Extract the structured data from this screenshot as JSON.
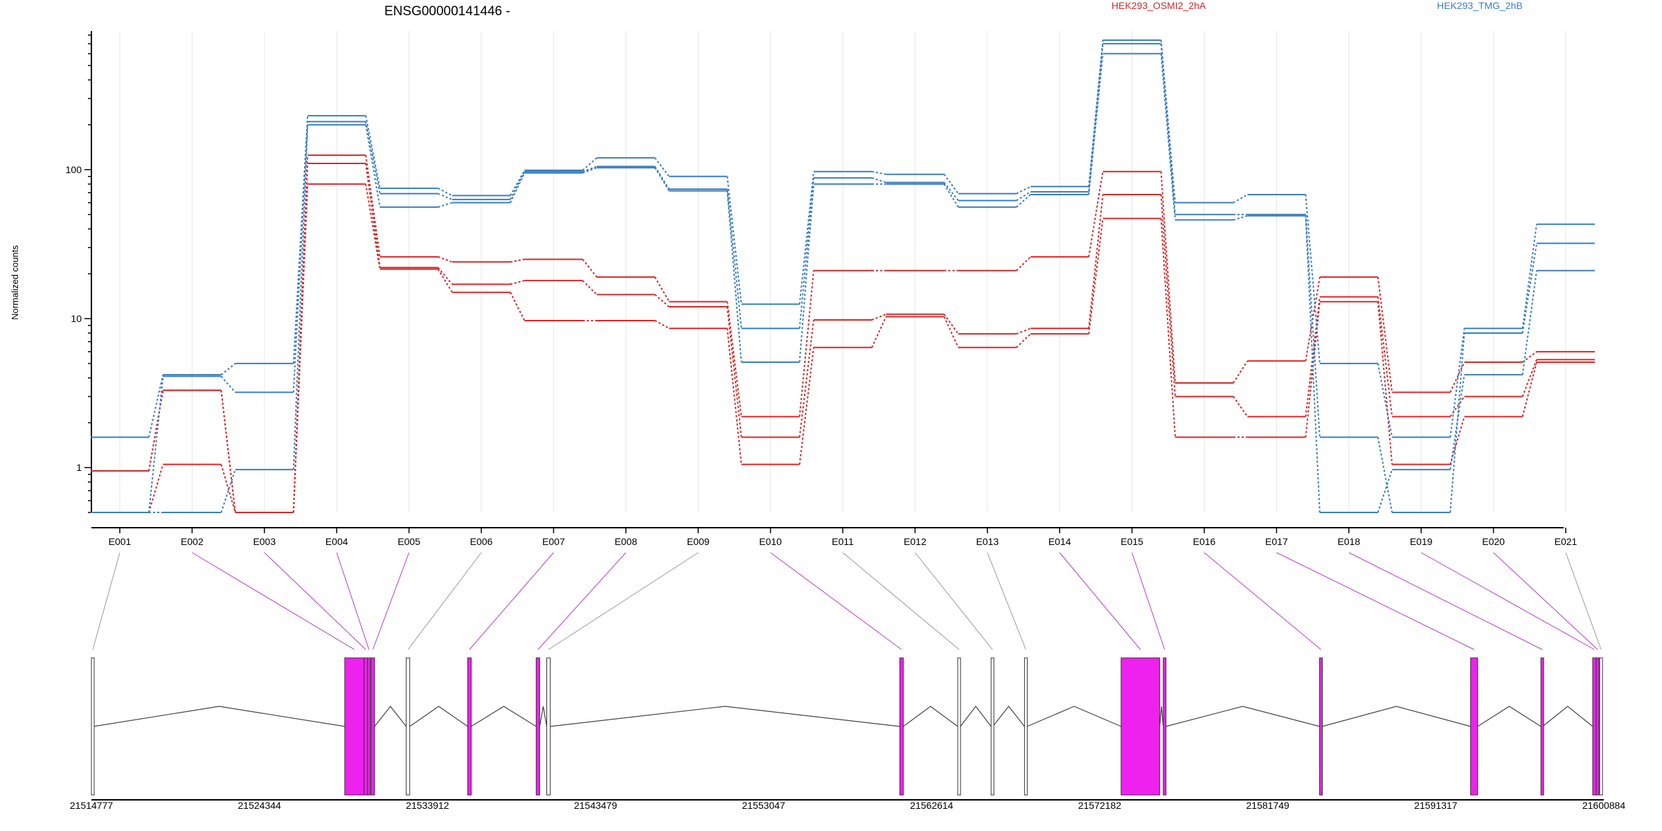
{
  "chart_data": {
    "type": "line",
    "title": "ENSG00000141446 -",
    "ylabel": "Normalized counts",
    "y_scale": "log",
    "ylim": [
      0.5,
      850
    ],
    "y_ticks": [
      1,
      10,
      100
    ],
    "y_tick_labels": [
      "1",
      "10",
      "100"
    ],
    "grid": "vertical lines at each exon",
    "legend": [
      {
        "name": "HEK293_OSMI2_2hA",
        "color": "#d62728"
      },
      {
        "name": "HEK293_TMG_2hB",
        "color": "#3a7dc4"
      }
    ],
    "categories": [
      "E001",
      "E002",
      "E003",
      "E004",
      "E005",
      "E006",
      "E007",
      "E008",
      "E009",
      "E010",
      "E011",
      "E012",
      "E013",
      "E014",
      "E015",
      "E016",
      "E017",
      "E018",
      "E019",
      "E020",
      "E021"
    ],
    "series": [
      {
        "group": "HEK293_OSMI2_2hA",
        "color": "#d62728",
        "values": [
          0.95,
          3.3,
          0.5,
          125,
          26,
          24,
          25,
          19,
          13,
          2.2,
          21,
          21,
          21,
          26,
          97,
          3.7,
          5.2,
          19,
          3.2,
          5.1,
          6.0
        ]
      },
      {
        "group": "HEK293_OSMI2_2hA",
        "color": "#d62728",
        "values": [
          0.95,
          3.3,
          0.5,
          110,
          22,
          17,
          18,
          14.5,
          12,
          1.6,
          9.8,
          10.7,
          7.9,
          8.6,
          68,
          3.0,
          2.2,
          14,
          2.2,
          3.0,
          5.3
        ]
      },
      {
        "group": "HEK293_OSMI2_2hA",
        "color": "#d62728",
        "values": [
          0.5,
          1.05,
          0.5,
          80,
          21.5,
          15,
          9.7,
          9.7,
          8.6,
          1.05,
          6.4,
          10.3,
          6.4,
          7.9,
          47,
          1.6,
          1.6,
          13,
          1.05,
          2.2,
          5.1
        ]
      },
      {
        "group": "HEK293_TMG_2hB",
        "color": "#3a7dc4",
        "values": [
          1.6,
          4.2,
          5.0,
          230,
          75,
          67,
          99,
          120,
          90,
          12.5,
          97,
          93,
          69,
          77,
          740,
          60,
          68,
          5.0,
          1.6,
          8.6,
          43
        ]
      },
      {
        "group": "HEK293_TMG_2hB",
        "color": "#3a7dc4",
        "values": [
          0.5,
          4.1,
          3.2,
          210,
          69,
          63,
          97,
          105,
          74,
          8.6,
          88,
          82,
          62,
          71,
          700,
          50,
          50,
          1.6,
          0.5,
          8.0,
          32
        ]
      },
      {
        "group": "HEK293_TMG_2hB",
        "color": "#3a7dc4",
        "values": [
          0.5,
          0.5,
          0.97,
          200,
          56,
          60,
          95,
          103,
          72,
          5.1,
          80,
          80,
          56,
          68,
          600,
          46,
          49,
          0.5,
          0.97,
          4.2,
          21
        ]
      }
    ],
    "gene_model": {
      "coordinate_ticks": [
        "21514777",
        "21524344",
        "21533912",
        "21543479",
        "21553047",
        "21562614",
        "21572182",
        "21581749",
        "21591317",
        "21600884"
      ],
      "coordinate_range": [
        21514777,
        21600884
      ],
      "exons": [
        {
          "id": "E001",
          "start": 21514777,
          "end": 21514900,
          "highlight": false
        },
        {
          "id": "E002",
          "start": 21529200,
          "end": 21530300,
          "highlight": true
        },
        {
          "id": "E003",
          "start": 21530300,
          "end": 21530500,
          "highlight": true
        },
        {
          "id": "E004",
          "start": 21530500,
          "end": 21530650,
          "highlight": true
        },
        {
          "id": "E005",
          "start": 21530700,
          "end": 21530900,
          "highlight": true
        },
        {
          "id": "E006",
          "start": 21532700,
          "end": 21532900,
          "highlight": false
        },
        {
          "id": "E007",
          "start": 21536200,
          "end": 21536400,
          "highlight": true
        },
        {
          "id": "E008",
          "start": 21540100,
          "end": 21540300,
          "highlight": true
        },
        {
          "id": "E009",
          "start": 21540700,
          "end": 21540900,
          "highlight": false
        },
        {
          "id": "E010",
          "start": 21560800,
          "end": 21561000,
          "highlight": true
        },
        {
          "id": "E011",
          "start": 21564100,
          "end": 21564250,
          "highlight": false
        },
        {
          "id": "E012",
          "start": 21566000,
          "end": 21566100,
          "highlight": false
        },
        {
          "id": "E013",
          "start": 21567900,
          "end": 21568050,
          "highlight": false
        },
        {
          "id": "E014",
          "start": 21573400,
          "end": 21575600,
          "highlight": true
        },
        {
          "id": "E015",
          "start": 21575800,
          "end": 21575950,
          "highlight": true
        },
        {
          "id": "E016",
          "start": 21584700,
          "end": 21584850,
          "highlight": true
        },
        {
          "id": "E017",
          "start": 21593300,
          "end": 21593700,
          "highlight": true
        },
        {
          "id": "E018",
          "start": 21597300,
          "end": 21597400,
          "highlight": true
        },
        {
          "id": "E019",
          "start": 21600250,
          "end": 21600450,
          "highlight": true
        },
        {
          "id": "E020",
          "start": 21600450,
          "end": 21600600,
          "highlight": true
        },
        {
          "id": "E021",
          "start": 21600650,
          "end": 21600800,
          "highlight": false
        }
      ]
    }
  },
  "colors": {
    "highlight_exon": "#ee22ee",
    "connector_highlight": "#b040c0",
    "connector_plain": "#999999",
    "grid": "#e6e6e6"
  }
}
